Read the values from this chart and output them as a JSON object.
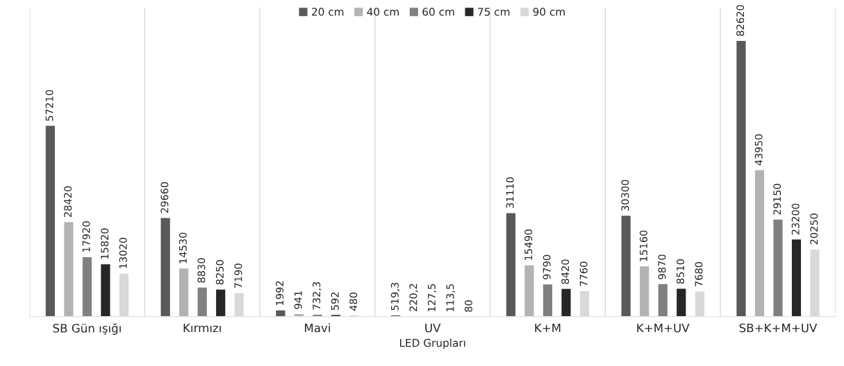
{
  "chart_data": {
    "type": "bar",
    "xlabel": "LED Grupları",
    "categories": [
      "SB Gün ışığı",
      "Kırmızı",
      "Mavi",
      "UV",
      "K+M",
      "K+M+UV",
      "SB+K+M+UV"
    ],
    "series": [
      {
        "name": "20 cm",
        "color": "#595959",
        "values": [
          57210,
          29660,
          1992,
          519.3,
          31110,
          30300,
          82620
        ],
        "value_labels": [
          "57210",
          "29660",
          "1992",
          "519,3",
          "31110",
          "30300",
          "82620"
        ]
      },
      {
        "name": "40 cm",
        "color": "#b3b3b3",
        "values": [
          28420,
          14530,
          941,
          220.2,
          15490,
          15160,
          43950
        ],
        "value_labels": [
          "28420",
          "14530",
          "941",
          "220,2",
          "15490",
          "15160",
          "43950"
        ]
      },
      {
        "name": "60 cm",
        "color": "#808080",
        "values": [
          17920,
          8830,
          732.3,
          127.5,
          9790,
          9870,
          29150
        ],
        "value_labels": [
          "17920",
          "8830",
          "732,3",
          "127,5",
          "9790",
          "9870",
          "29150"
        ]
      },
      {
        "name": "75 cm",
        "color": "#262626",
        "values": [
          15820,
          8250,
          592,
          113.5,
          8420,
          8510,
          23200
        ],
        "value_labels": [
          "15820",
          "8250",
          "592",
          "113,5",
          "8420",
          "8510",
          "23200"
        ]
      },
      {
        "name": "90 cm",
        "color": "#d9d9d9",
        "values": [
          13020,
          7190,
          480,
          80,
          7760,
          7680,
          20250
        ],
        "value_labels": [
          "13020",
          "7190",
          "480",
          "80",
          "7760",
          "7680",
          "20250"
        ]
      }
    ],
    "grid": "x",
    "legend": "top",
    "tick_labels": "x"
  }
}
